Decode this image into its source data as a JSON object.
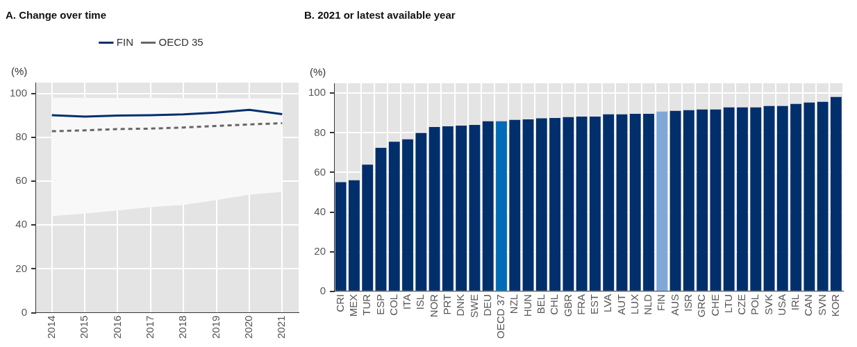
{
  "chart_data": [
    {
      "type": "line",
      "title": "A. Change over time",
      "ylabel": "(%)",
      "categories": [
        "2014",
        "2015",
        "2016",
        "2017",
        "2018",
        "2019",
        "2020",
        "2021"
      ],
      "series": [
        {
          "name": "FIN",
          "color": "#002f6c",
          "line_style": "solid",
          "values": [
            90.1,
            89.5,
            90,
            90.1,
            90.5,
            91.3,
            92.6,
            90.6
          ]
        },
        {
          "name": "OECD 35",
          "color": "#666666",
          "line_style": "dashed",
          "values": [
            82.8,
            83.2,
            83.8,
            84,
            84.5,
            85.2,
            85.9,
            86.5
          ],
          "lower": [
            44.1,
            45.2,
            46.7,
            48.2,
            49.2,
            51.4,
            53.9,
            55.1
          ],
          "upper": [
            98.1,
            98,
            98,
            98,
            97.9,
            97.9,
            97.8,
            97.8
          ]
        }
      ],
      "ylim": [
        0,
        105
      ],
      "yticks": [
        0,
        20,
        40,
        60,
        80,
        100
      ],
      "grid": true,
      "legend": "top"
    },
    {
      "type": "bar",
      "title": "B. 2021 or latest available year",
      "ylabel": "(%)",
      "categories": [
        "CRI",
        "MEX",
        "TUR",
        "ESP",
        "COL",
        "ITA",
        "ISL",
        "NOR",
        "PRT",
        "DNK",
        "SWE",
        "DEU",
        "OECD 37",
        "NZL",
        "HUN",
        "BEL",
        "CHL",
        "GBR",
        "FRA",
        "EST",
        "LVA",
        "AUT",
        "LUX",
        "NLD",
        "FIN",
        "AUS",
        "ISR",
        "GRC",
        "CHE",
        "LTU",
        "CZE",
        "POL",
        "SVK",
        "USA",
        "IRL",
        "CAN",
        "SVN",
        "KOR"
      ],
      "values": [
        55.1,
        56.1,
        63.9,
        72.4,
        75.5,
        76.7,
        80,
        82.9,
        83.3,
        83.6,
        84,
        85.8,
        85.8,
        86.5,
        86.8,
        87.3,
        87.5,
        87.9,
        88.2,
        88.2,
        89.3,
        89.3,
        89.6,
        89.6,
        90.7,
        91.1,
        91.4,
        91.8,
        91.8,
        92.8,
        92.8,
        92.8,
        93.5,
        93.5,
        94.6,
        95.3,
        95.6,
        98.1
      ],
      "colors": [
        "#002f6c",
        "#002f6c",
        "#002f6c",
        "#002f6c",
        "#002f6c",
        "#002f6c",
        "#002f6c",
        "#002f6c",
        "#002f6c",
        "#002f6c",
        "#002f6c",
        "#002f6c",
        "#006bb6",
        "#002f6c",
        "#002f6c",
        "#002f6c",
        "#002f6c",
        "#002f6c",
        "#002f6c",
        "#002f6c",
        "#002f6c",
        "#002f6c",
        "#002f6c",
        "#002f6c",
        "#7fa8d9",
        "#002f6c",
        "#002f6c",
        "#002f6c",
        "#002f6c",
        "#002f6c",
        "#002f6c",
        "#002f6c",
        "#002f6c",
        "#002f6c",
        "#002f6c",
        "#002f6c",
        "#002f6c",
        "#002f6c"
      ],
      "ylim": [
        0,
        105
      ],
      "yticks": [
        0,
        20,
        40,
        60,
        80,
        100
      ],
      "grid": true
    }
  ]
}
